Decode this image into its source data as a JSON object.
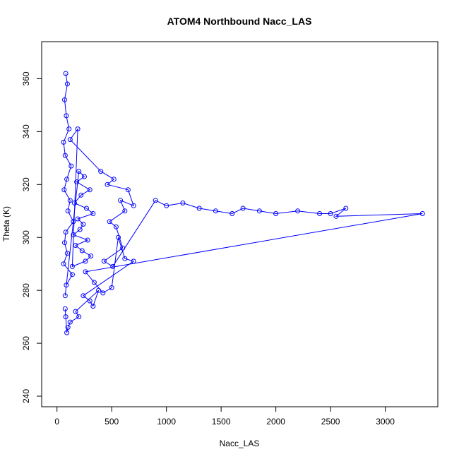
{
  "chart_data": {
    "type": "line",
    "title": "ATOM4 Northbound Nacc_LAS",
    "xlabel": "Nacc_LAS",
    "ylabel": "Theta (K)",
    "xlim": [
      -140,
      3480
    ],
    "ylim": [
      236,
      374
    ],
    "xticks": [
      "0",
      "500",
      "1000",
      "1500",
      "2000",
      "2500",
      "3000"
    ],
    "yticks": [
      "240",
      "260",
      "280",
      "300",
      "320",
      "340",
      "360"
    ],
    "series_color": "#0000ff",
    "point_style": "open-circle-with-lines",
    "grid": false,
    "legend": "none",
    "series": [
      {
        "x": [
          80,
          95,
          70,
          85,
          110,
          60,
          75,
          130,
          90,
          65,
          120,
          100,
          150,
          80,
          70,
          95,
          60,
          140,
          85,
          75,
          200,
          250,
          180,
          300,
          220,
          160,
          270,
          330,
          190,
          240,
          210,
          150,
          280,
          170,
          230,
          310,
          260,
          140,
          190,
          120,
          400,
          520,
          460,
          650,
          700,
          580,
          620,
          480,
          540,
          600,
          430,
          510,
          900,
          1000,
          1150,
          1300,
          1450,
          1600,
          1700,
          1850,
          2000,
          2200,
          2400,
          2500,
          2640,
          2550,
          3340,
          260,
          340,
          420,
          500,
          560,
          620,
          700,
          240,
          300,
          330,
          380,
          170,
          200,
          120,
          100,
          90,
          80,
          75
        ],
        "y": [
          362,
          358,
          352,
          346,
          341,
          336,
          331,
          327,
          322,
          318,
          314,
          310,
          306,
          302,
          298,
          294,
          290,
          286,
          282,
          278,
          325,
          323,
          321,
          318,
          316,
          313,
          311,
          309,
          307,
          305,
          303,
          301,
          299,
          297,
          295,
          293,
          291,
          289,
          341,
          337,
          325,
          322,
          320,
          318,
          312,
          314,
          310,
          306,
          304,
          296,
          291,
          289,
          314,
          312,
          313,
          311,
          310,
          309,
          311,
          310,
          309,
          310,
          309,
          309,
          311,
          308,
          309,
          287,
          283,
          279,
          281,
          300,
          292,
          291,
          278,
          276,
          274,
          280,
          272,
          270,
          268,
          266,
          264,
          270,
          273
        ]
      }
    ]
  }
}
